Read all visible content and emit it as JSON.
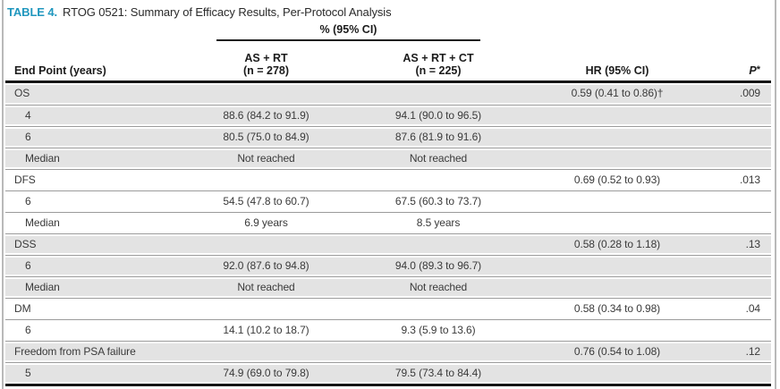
{
  "title": {
    "label": "TABLE 4.",
    "text": "RTOG 0521: Summary of Efficacy Results, Per-Protocol Analysis"
  },
  "header": {
    "spanner": "% (95% CI)",
    "col_endpoint": "End Point (years)",
    "arm1_line1": "AS + RT",
    "arm1_line2": "(n = 278)",
    "arm2_line1": "AS + RT + CT",
    "arm2_line2": "(n = 225)",
    "col_hr": "HR (95% CI)",
    "col_p": "P",
    "col_p_sup": "*"
  },
  "rows": [
    {
      "label": "OS",
      "indent": false,
      "shaded": true,
      "arm1": "",
      "arm2": "",
      "hr": "0.59 (0.41 to 0.86)†",
      "p": ".009"
    },
    {
      "label": "4",
      "indent": true,
      "shaded": true,
      "arm1": "88.6 (84.2 to 91.9)",
      "arm2": "94.1 (90.0 to 96.5)",
      "hr": "",
      "p": ""
    },
    {
      "label": "6",
      "indent": true,
      "shaded": true,
      "arm1": "80.5 (75.0 to 84.9)",
      "arm2": "87.6 (81.9 to 91.6)",
      "hr": "",
      "p": ""
    },
    {
      "label": "Median",
      "indent": true,
      "shaded": true,
      "arm1": "Not reached",
      "arm2": "Not reached",
      "hr": "",
      "p": ""
    },
    {
      "label": "DFS",
      "indent": false,
      "shaded": false,
      "arm1": "",
      "arm2": "",
      "hr": "0.69 (0.52 to 0.93)",
      "p": ".013"
    },
    {
      "label": "6",
      "indent": true,
      "shaded": false,
      "arm1": "54.5 (47.8 to 60.7)",
      "arm2": "67.5 (60.3 to 73.7)",
      "hr": "",
      "p": ""
    },
    {
      "label": "Median",
      "indent": true,
      "shaded": false,
      "arm1": "6.9 years",
      "arm2": "8.5 years",
      "hr": "",
      "p": ""
    },
    {
      "label": "DSS",
      "indent": false,
      "shaded": true,
      "arm1": "",
      "arm2": "",
      "hr": "0.58 (0.28 to 1.18)",
      "p": ".13"
    },
    {
      "label": "6",
      "indent": true,
      "shaded": true,
      "arm1": "92.0 (87.6 to 94.8)",
      "arm2": "94.0 (89.3 to 96.7)",
      "hr": "",
      "p": ""
    },
    {
      "label": "Median",
      "indent": true,
      "shaded": true,
      "arm1": "Not reached",
      "arm2": "Not reached",
      "hr": "",
      "p": ""
    },
    {
      "label": "DM",
      "indent": false,
      "shaded": false,
      "arm1": "",
      "arm2": "",
      "hr": "0.58 (0.34 to 0.98)",
      "p": ".04"
    },
    {
      "label": "6",
      "indent": true,
      "shaded": false,
      "arm1": "14.1 (10.2 to 18.7)",
      "arm2": "9.3 (5.9 to 13.6)",
      "hr": "",
      "p": ""
    },
    {
      "label": "Freedom from PSA failure",
      "indent": false,
      "shaded": true,
      "arm1": "",
      "arm2": "",
      "hr": "0.76 (0.54 to 1.08)",
      "p": ".12"
    },
    {
      "label": "5",
      "indent": true,
      "shaded": true,
      "arm1": "74.9 (69.0 to 79.8)",
      "arm2": "79.5 (73.4 to 84.4)",
      "hr": "",
      "p": ""
    }
  ],
  "colors": {
    "accent": "#2097BE",
    "row_shade": "#e3e3e3",
    "rule": "#161616",
    "separator": "#9b9b9b"
  }
}
